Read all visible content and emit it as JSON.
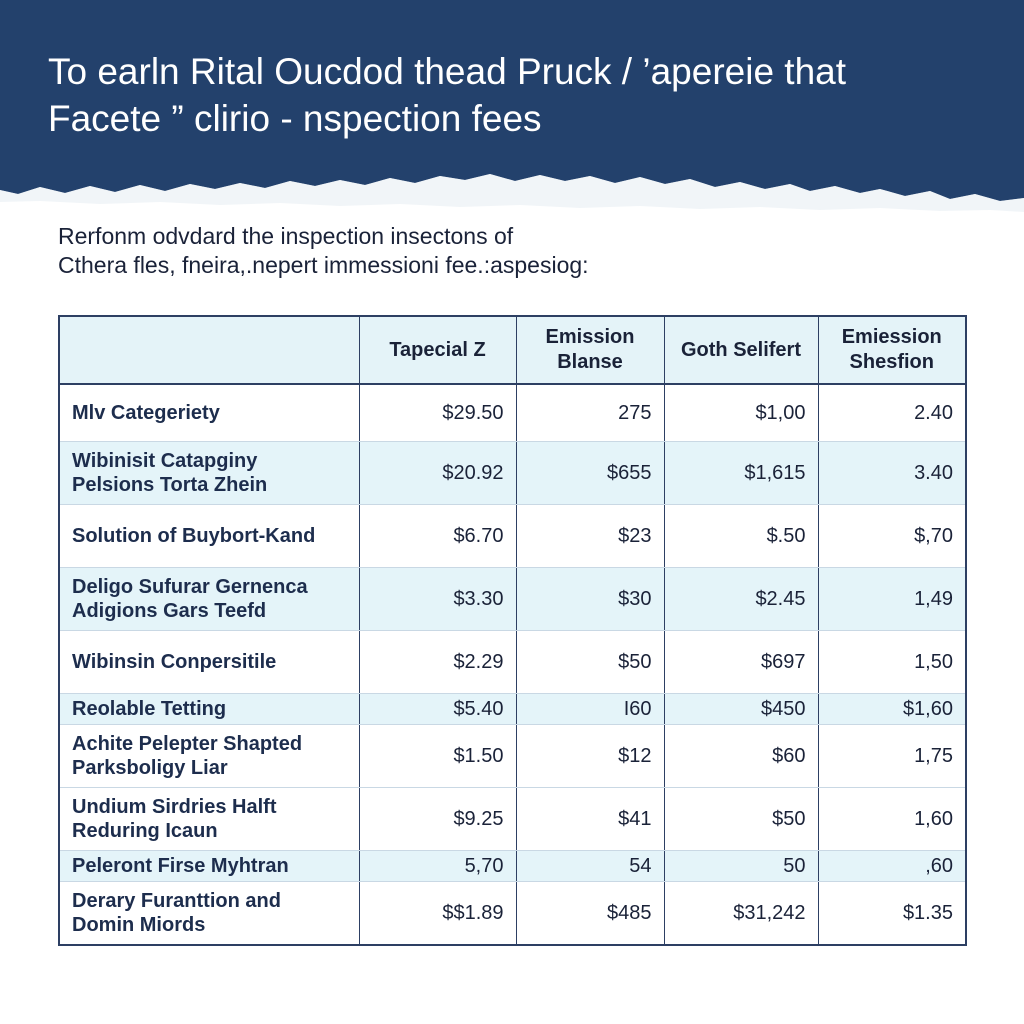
{
  "banner": {
    "title_line1": "To earln Rital Oucdod thead Pruck / ’apereie that",
    "title_line2": "Facete ” clirio - nspection fees",
    "color": "#23416c"
  },
  "intro": {
    "line1": "Rerfonm odvdard the inspection insectons of",
    "line2": "Cthera fles, fneira,.nepert immessioni fee.:aspesiog:"
  },
  "table": {
    "headers": [
      "",
      "Tapecial Z",
      "Emission Blanse",
      "Goth Selifert",
      "Emiession Shesfion"
    ],
    "rows": [
      {
        "category": [
          "Mlv Categeriety"
        ],
        "values": [
          "$29.50",
          "275",
          "$1,00",
          "2.40"
        ]
      },
      {
        "category": [
          "Wibinisit Catapginy",
          "Pelsions Torta Zhein"
        ],
        "values": [
          "$20.92",
          "$655",
          "$1,615",
          "3.40"
        ]
      },
      {
        "category": [
          "Solution of Buybort-Kand"
        ],
        "values": [
          "$6.70",
          "$23",
          "$.50",
          "$,70"
        ]
      },
      {
        "category": [
          "Deligo Sufurar Gernenca",
          "Adigions Gars Teefd"
        ],
        "values": [
          "$3.30",
          "$30",
          "$2.45",
          "1,49"
        ]
      },
      {
        "category": [
          "Wibinsin Conpersitile"
        ],
        "values": [
          "$2.29",
          "$50",
          "$697",
          "1,50"
        ]
      },
      {
        "category": [
          "Reolable Tetting"
        ],
        "values": [
          "$5.40",
          "I60",
          "$450",
          "$1,60"
        ]
      },
      {
        "category": [
          "Achite Pelepter Shapted",
          "Parksboligy Liar"
        ],
        "values": [
          "$1.50",
          "$12",
          "$60",
          "1,75"
        ]
      },
      {
        "category": [
          "Undium Sirdries Halft",
          "Reduring Icaun"
        ],
        "values": [
          "$9.25",
          "$41",
          "$50",
          "1,60"
        ]
      },
      {
        "category": [
          "Peleront Firse Myhtran"
        ],
        "values": [
          "5,70",
          "54",
          "50",
          ",60"
        ]
      },
      {
        "category": [
          "Derary Furanttion and",
          "Domin Miords"
        ],
        "values": [
          "$$1.89",
          "$485",
          "$31,242",
          "$1.35"
        ]
      }
    ]
  }
}
